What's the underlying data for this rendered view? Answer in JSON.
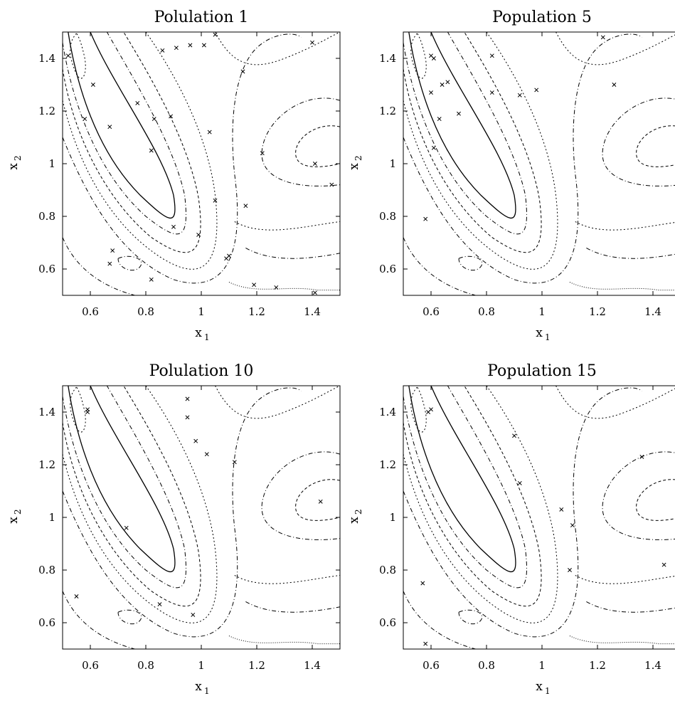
{
  "figure": {
    "description_type": "scatter-over-contour",
    "panels_count": 4
  },
  "chart_data": [
    {
      "type": "scatter",
      "title": "Polulation 1",
      "xlabel": "x",
      "xlabel_sub": "1",
      "ylabel": "x",
      "ylabel_sub": "2",
      "xlim": [
        0.5,
        1.5
      ],
      "ylim": [
        0.5,
        1.5
      ],
      "x_ticks": [
        "0.6",
        "0.8",
        "1",
        "1.2",
        "1.4"
      ],
      "y_ticks": [
        "0.6",
        "0.8",
        "1",
        "1.2",
        "1.4"
      ],
      "marker": "x",
      "points": [
        [
          0.52,
          1.41
        ],
        [
          0.61,
          1.3
        ],
        [
          0.58,
          1.17
        ],
        [
          0.67,
          1.14
        ],
        [
          0.77,
          1.23
        ],
        [
          0.83,
          1.17
        ],
        [
          0.82,
          1.05
        ],
        [
          0.89,
          1.18
        ],
        [
          0.86,
          1.43
        ],
        [
          0.91,
          1.44
        ],
        [
          0.96,
          1.45
        ],
        [
          1.01,
          1.45
        ],
        [
          1.05,
          1.49
        ],
        [
          1.15,
          1.35
        ],
        [
          1.03,
          1.12
        ],
        [
          1.22,
          1.04
        ],
        [
          1.4,
          1.46
        ],
        [
          1.41,
          1.0
        ],
        [
          1.47,
          0.92
        ],
        [
          1.05,
          0.86
        ],
        [
          1.16,
          0.84
        ],
        [
          0.9,
          0.76
        ],
        [
          0.99,
          0.73
        ],
        [
          1.09,
          0.64
        ],
        [
          1.1,
          0.65
        ],
        [
          0.68,
          0.67
        ],
        [
          0.67,
          0.62
        ],
        [
          0.82,
          0.56
        ],
        [
          1.19,
          0.54
        ],
        [
          1.27,
          0.53
        ],
        [
          1.41,
          0.51
        ]
      ]
    },
    {
      "type": "scatter",
      "title": "Population 5",
      "xlabel": "x",
      "xlabel_sub": "1",
      "ylabel": "x",
      "ylabel_sub": "2",
      "xlim": [
        0.5,
        1.5
      ],
      "ylim": [
        0.5,
        1.5
      ],
      "x_ticks": [
        "0.6",
        "0.8",
        "1",
        "1.2",
        "1.4"
      ],
      "y_ticks": [
        "0.6",
        "0.8",
        "1",
        "1.2",
        "1.4"
      ],
      "marker": "x",
      "points": [
        [
          0.6,
          1.41
        ],
        [
          0.61,
          1.4
        ],
        [
          0.6,
          1.27
        ],
        [
          0.64,
          1.3
        ],
        [
          0.66,
          1.31
        ],
        [
          0.63,
          1.17
        ],
        [
          0.7,
          1.19
        ],
        [
          0.61,
          1.06
        ],
        [
          0.58,
          0.79
        ],
        [
          0.82,
          1.41
        ],
        [
          0.82,
          1.27
        ],
        [
          0.92,
          1.26
        ],
        [
          0.98,
          1.28
        ],
        [
          1.22,
          1.48
        ],
        [
          1.26,
          1.3
        ]
      ]
    },
    {
      "type": "scatter",
      "title": "Polulation 10",
      "xlabel": "x",
      "xlabel_sub": "1",
      "ylabel": "x",
      "ylabel_sub": "2",
      "xlim": [
        0.5,
        1.5
      ],
      "ylim": [
        0.5,
        1.5
      ],
      "x_ticks": [
        "0.6",
        "0.8",
        "1",
        "1.2",
        "1.4"
      ],
      "y_ticks": [
        "0.6",
        "0.8",
        "1",
        "1.2",
        "1.4"
      ],
      "marker": "x",
      "points": [
        [
          0.59,
          1.4
        ],
        [
          0.59,
          1.41
        ],
        [
          0.95,
          1.45
        ],
        [
          0.95,
          1.38
        ],
        [
          0.98,
          1.29
        ],
        [
          1.02,
          1.24
        ],
        [
          1.12,
          1.21
        ],
        [
          0.73,
          0.96
        ],
        [
          0.55,
          0.7
        ],
        [
          0.85,
          0.67
        ],
        [
          0.97,
          0.63
        ],
        [
          1.43,
          1.06
        ]
      ]
    },
    {
      "type": "scatter",
      "title": "Population 15",
      "xlabel": "x",
      "xlabel_sub": "1",
      "ylabel": "x",
      "ylabel_sub": "2",
      "xlim": [
        0.5,
        1.5
      ],
      "ylim": [
        0.5,
        1.5
      ],
      "x_ticks": [
        "0.6",
        "0.8",
        "1",
        "1.2",
        "1.4"
      ],
      "y_ticks": [
        "0.6",
        "0.8",
        "1",
        "1.2",
        "1.4"
      ],
      "marker": "x",
      "points": [
        [
          0.59,
          1.4
        ],
        [
          0.6,
          1.41
        ],
        [
          0.9,
          1.31
        ],
        [
          0.92,
          1.13
        ],
        [
          1.07,
          1.03
        ],
        [
          1.11,
          0.97
        ],
        [
          1.1,
          0.8
        ],
        [
          1.36,
          1.23
        ],
        [
          1.44,
          0.82
        ],
        [
          0.57,
          0.75
        ],
        [
          0.58,
          0.52
        ]
      ]
    }
  ]
}
